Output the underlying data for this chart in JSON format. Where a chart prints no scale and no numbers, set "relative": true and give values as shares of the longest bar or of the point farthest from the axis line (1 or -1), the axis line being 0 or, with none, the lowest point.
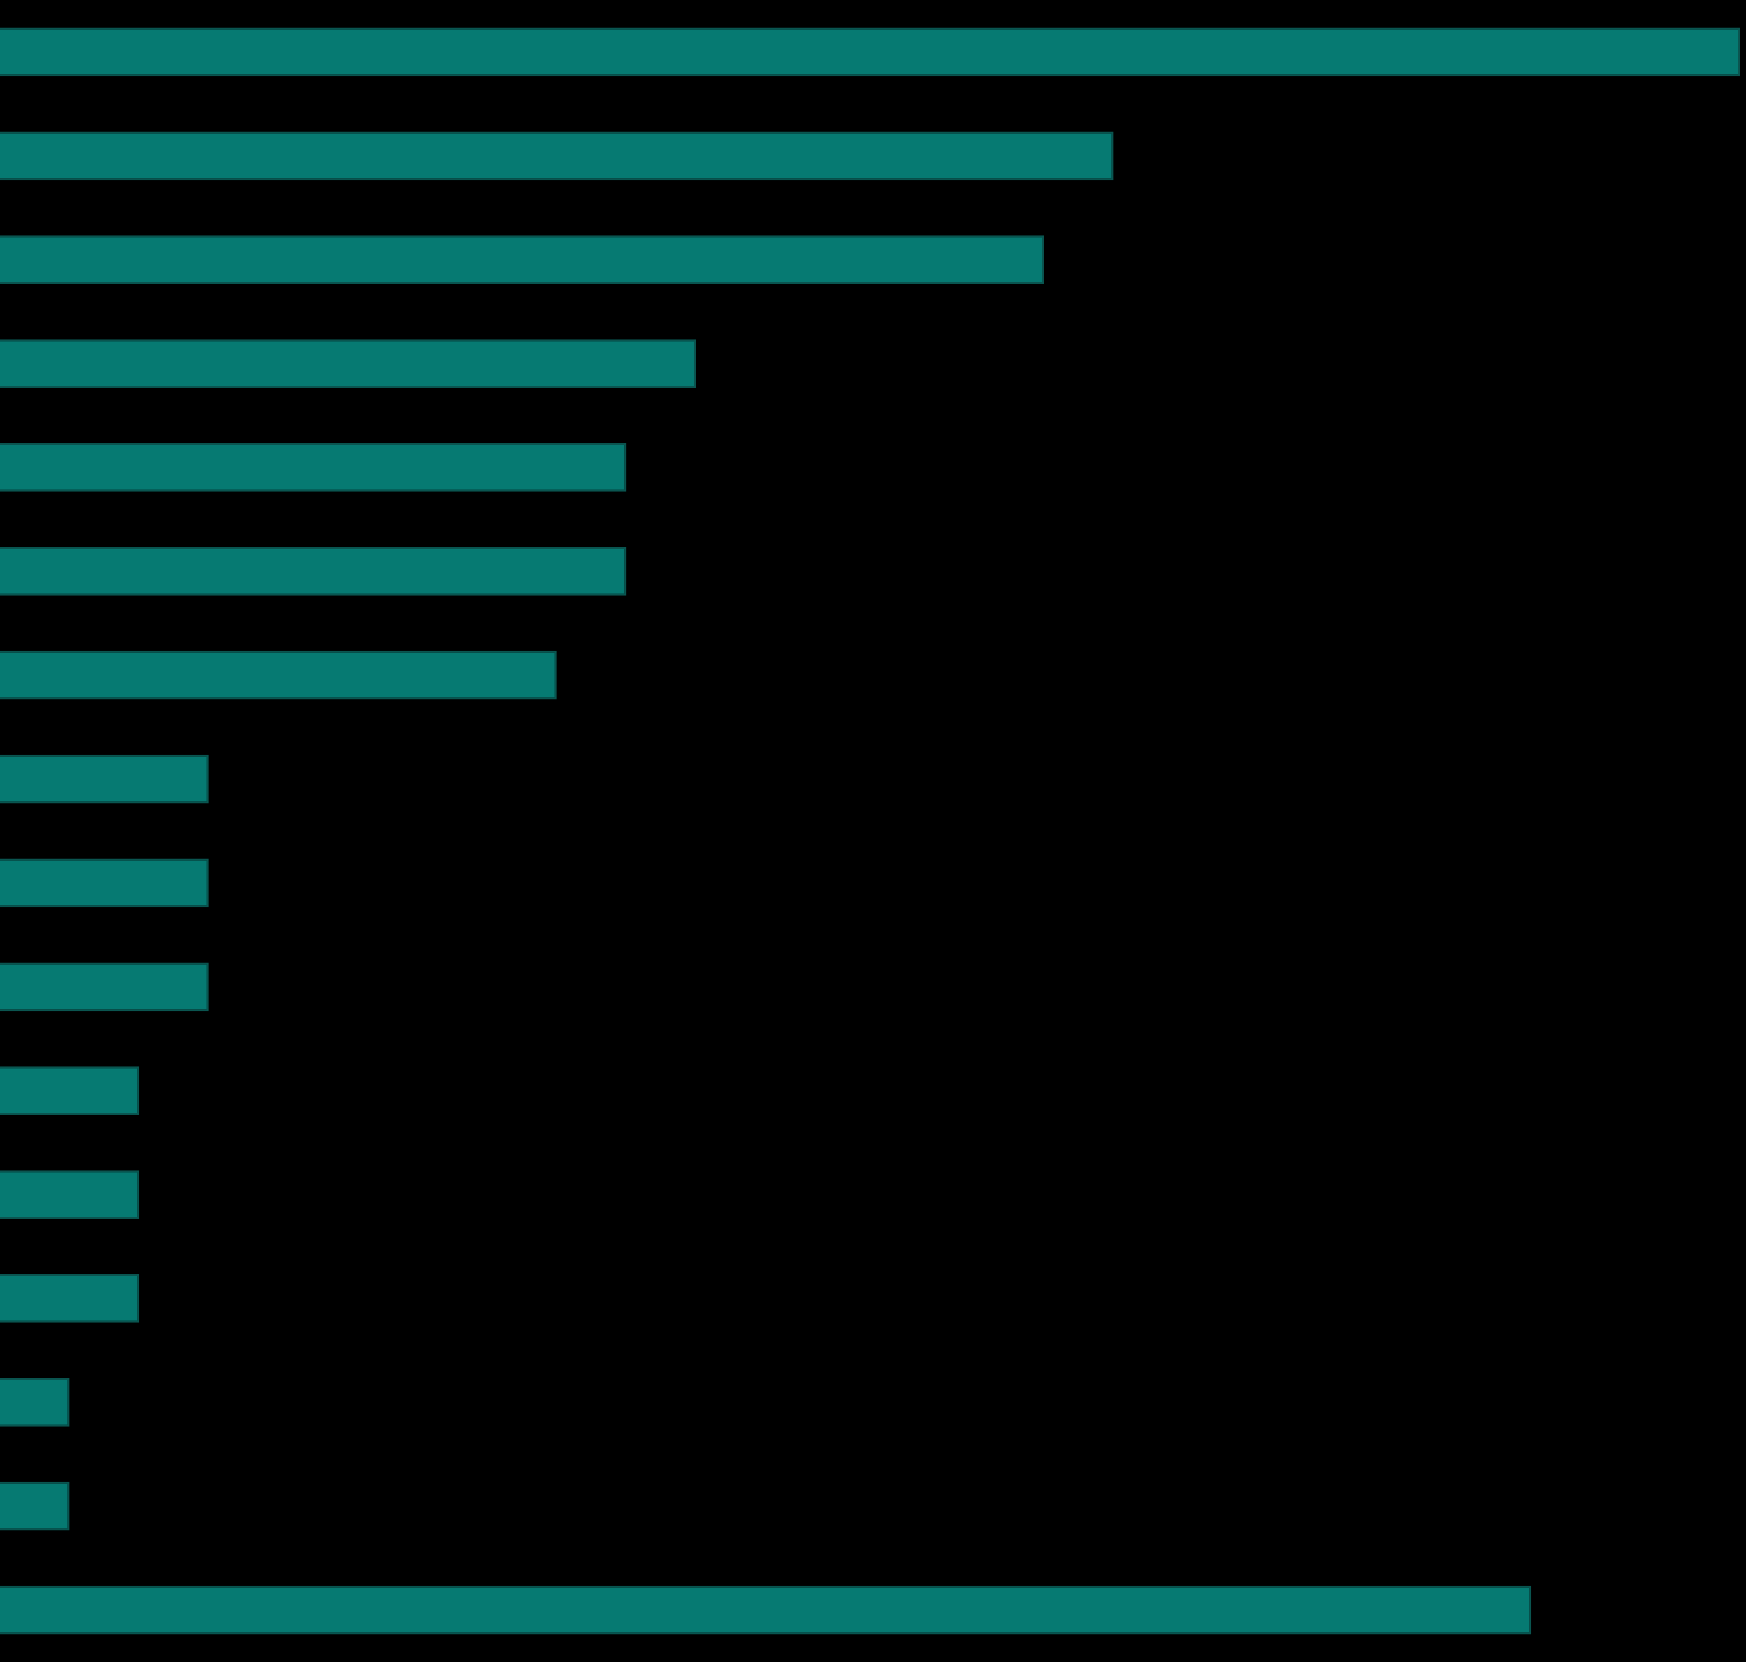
{
  "chart_data": {
    "type": "bar",
    "orientation": "horizontal",
    "relative": true,
    "legend": false,
    "tick_labels": false,
    "categories": [
      null,
      null,
      null,
      null,
      null,
      null,
      null,
      null,
      null,
      null,
      null,
      null,
      null,
      null,
      null,
      null
    ],
    "values": [
      1,
      0.64,
      0.6,
      0.4,
      0.36,
      0.36,
      0.32,
      0.12,
      0.12,
      0.12,
      0.08,
      0.08,
      0.08,
      0.04,
      0.04,
      0.88
    ],
    "color": "#067a72"
  }
}
